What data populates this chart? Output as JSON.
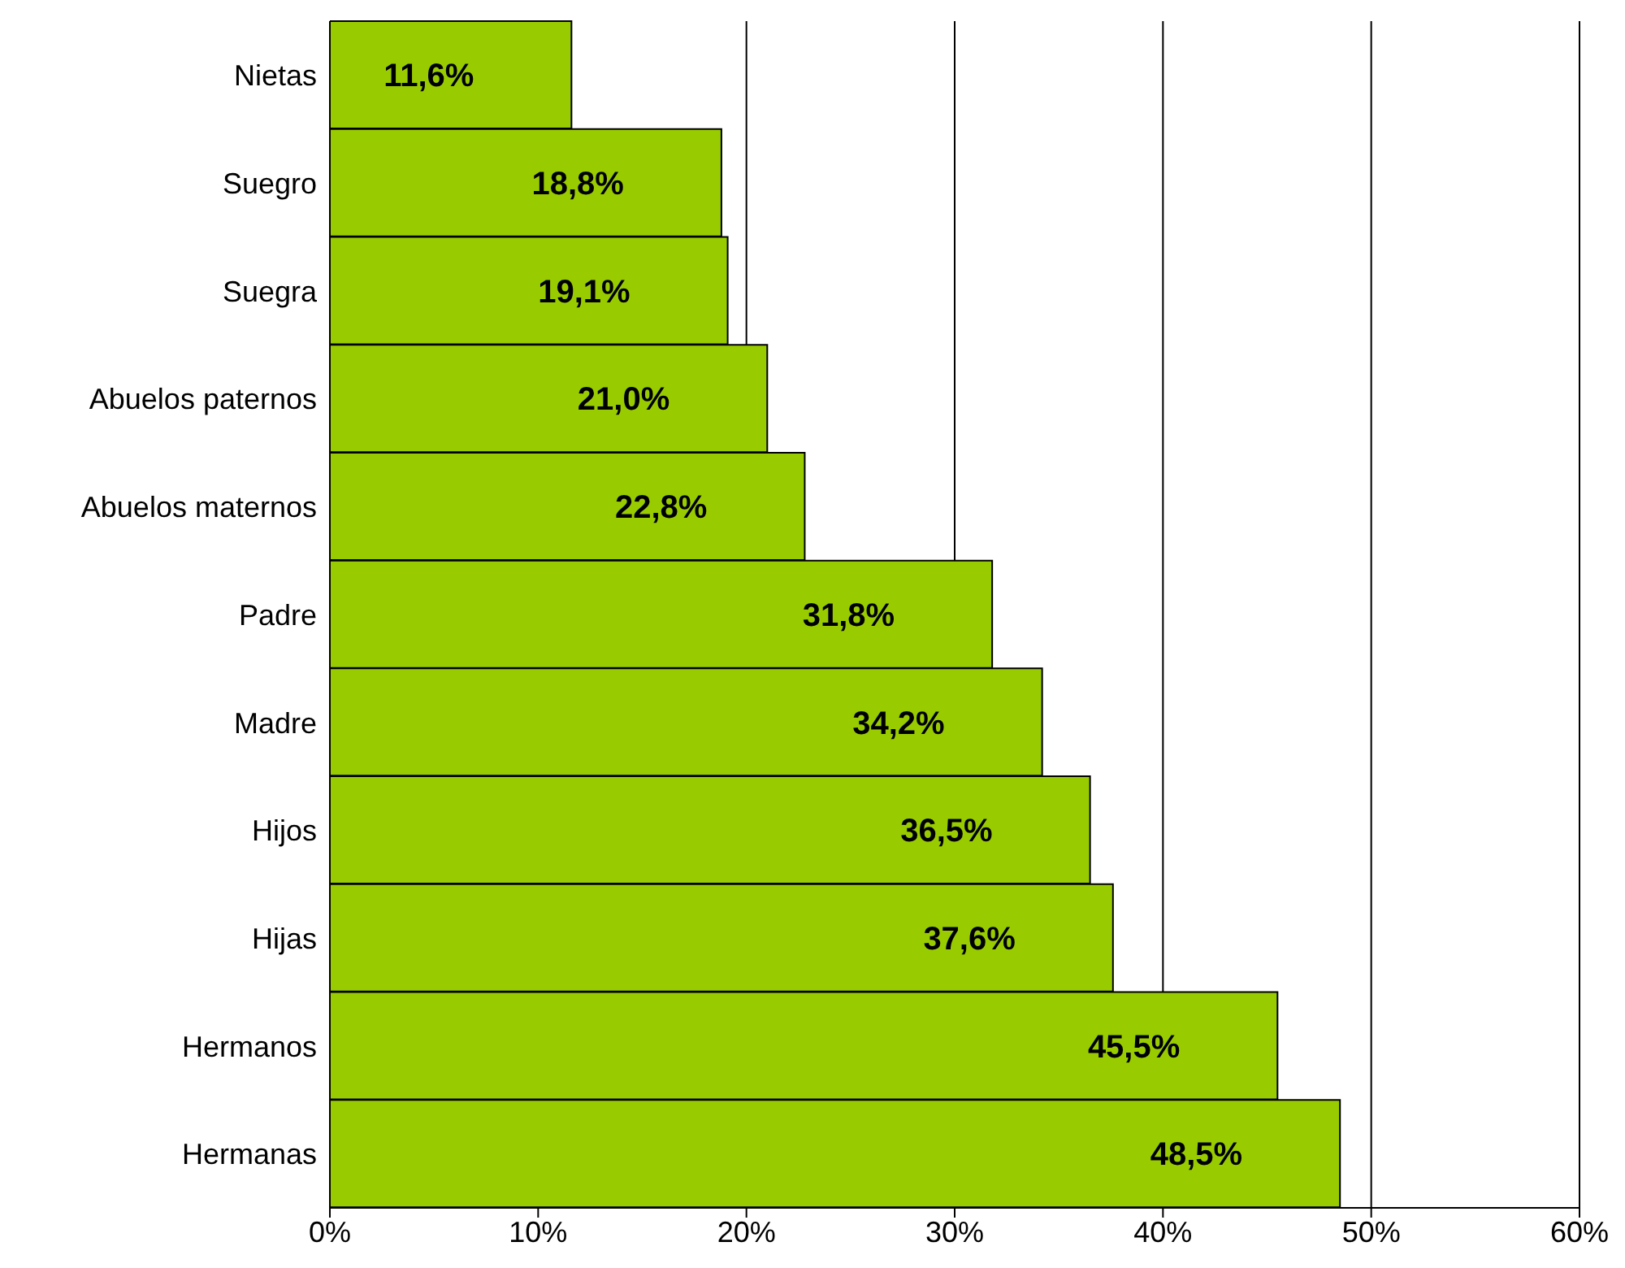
{
  "chart_data": {
    "type": "bar",
    "orientation": "horizontal",
    "categories": [
      "Nietas",
      "Suegro",
      "Suegra",
      "Abuelos paternos",
      "Abuelos maternos",
      "Padre",
      "Madre",
      "Hijos",
      "Hijas",
      "Hermanos",
      "Hermanas"
    ],
    "values": [
      11.6,
      18.8,
      19.1,
      21.0,
      22.8,
      31.8,
      34.2,
      36.5,
      37.6,
      45.5,
      48.5
    ],
    "value_labels": [
      "11,6%",
      "18,8%",
      "19,1%",
      "21,0%",
      "22,8%",
      "31,8%",
      "34,2%",
      "36,5%",
      "37,6%",
      "45,5%",
      "48,5%"
    ],
    "color": "#99cc00",
    "xlim": [
      0,
      60
    ],
    "xticks": [
      {
        "value": 0,
        "label": "0%"
      },
      {
        "value": 10,
        "label": "10%"
      },
      {
        "value": 20,
        "label": "20%"
      },
      {
        "value": 30,
        "label": "30%"
      },
      {
        "value": 40,
        "label": "40%"
      },
      {
        "value": 50,
        "label": "50%"
      },
      {
        "value": 60,
        "label": "60%"
      }
    ],
    "grid": "x"
  }
}
